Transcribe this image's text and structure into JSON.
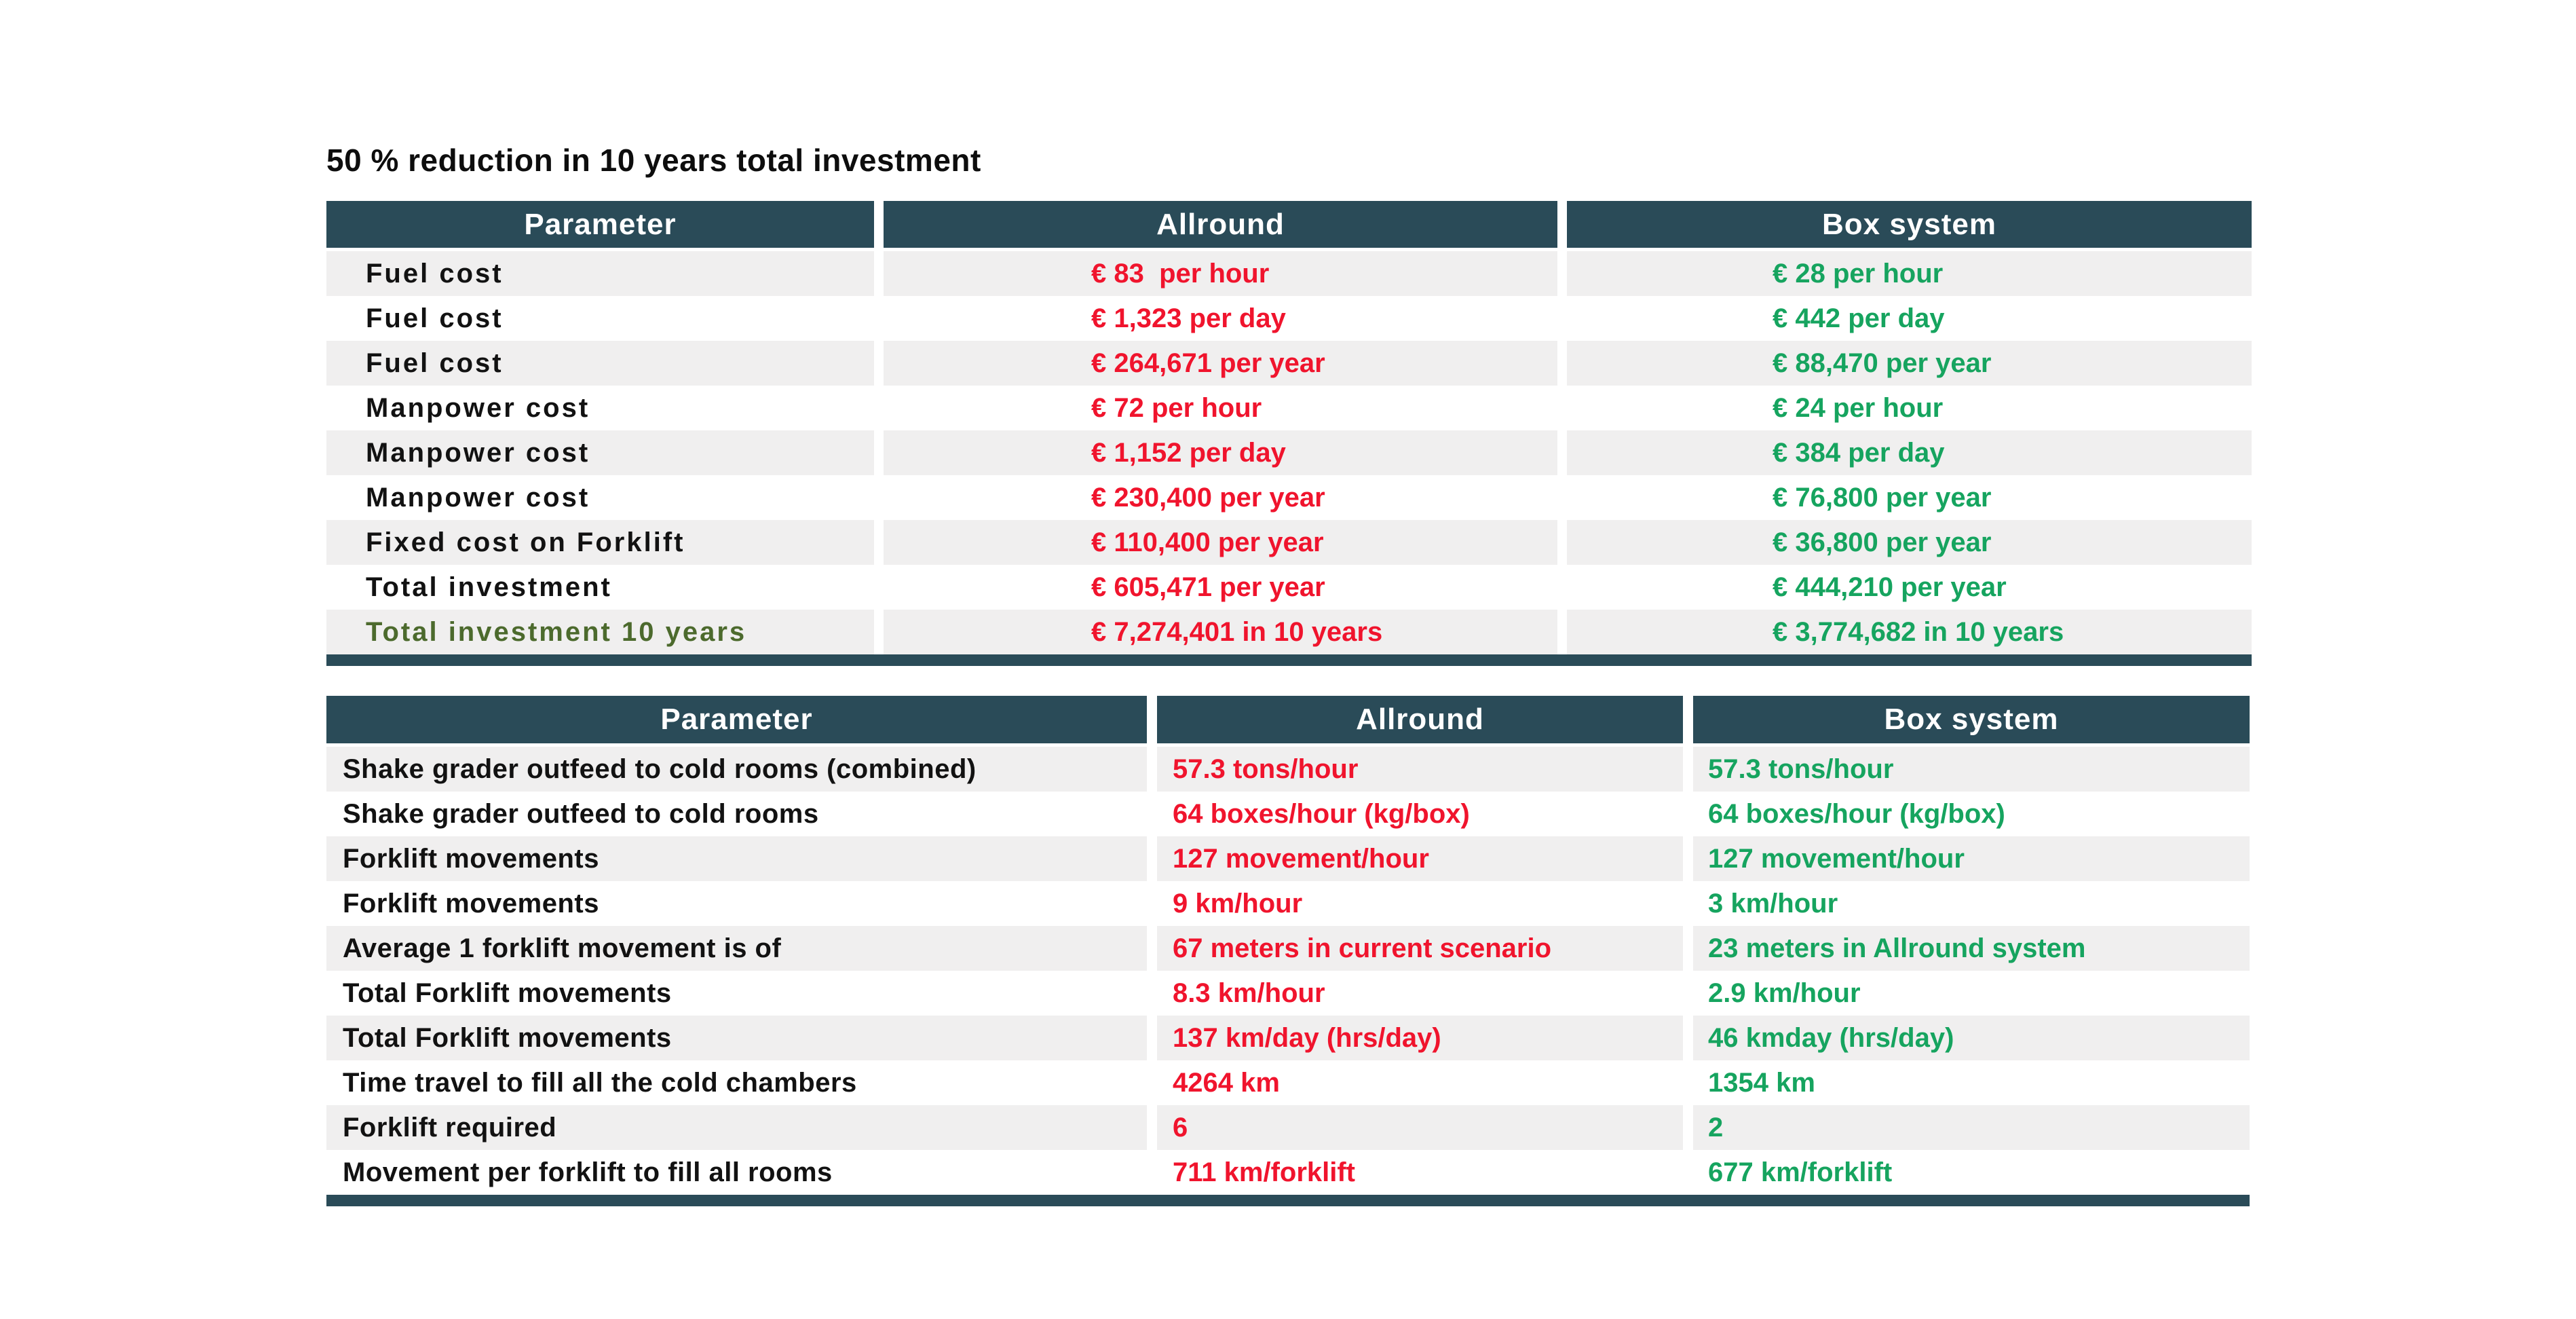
{
  "page": {
    "title": "50 % reduction in 10 years total investment"
  },
  "colors": {
    "header_bg": "#2a4b58",
    "header_text": "#ffffff",
    "row_alt_bg": "#f0efef",
    "row_bg": "#ffffff",
    "label_text": "#121212",
    "highlight_label_text": "#4c6a2d",
    "allround_text": "#f0142d",
    "box_text": "#16a45f",
    "bottom_border": "#2a4b58"
  },
  "chart_data": [
    {
      "type": "table",
      "name": "cost-comparison",
      "title": "50 % reduction in 10 years total investment",
      "columns": [
        "Parameter",
        "Allround",
        "Box system"
      ],
      "rows": [
        [
          "Fuel cost",
          "€ 83  per hour",
          "€ 28 per hour"
        ],
        [
          "Fuel cost",
          "€ 1,323 per day",
          "€ 442 per day"
        ],
        [
          "Fuel cost",
          "€ 264,671 per year",
          "€ 88,470 per year"
        ],
        [
          "Manpower cost",
          "€ 72 per hour",
          "€ 24 per hour"
        ],
        [
          "Manpower cost",
          "€ 1,152 per day",
          "€ 384 per day"
        ],
        [
          "Manpower cost",
          "€ 230,400 per year",
          "€ 76,800 per year"
        ],
        [
          "Fixed cost on Forklift",
          "€ 110,400 per year",
          "€ 36,800 per year"
        ],
        [
          "Total investment",
          "€ 605,471 per year",
          "€ 444,210 per year"
        ],
        [
          "Total investment 10 years",
          "€ 7,274,401 in 10 years",
          "€ 3,774,682 in 10 years"
        ]
      ],
      "highlight_row_indices": [
        8
      ],
      "value_colors": {
        "Allround": "#f0142d",
        "Box system": "#16a45f"
      }
    },
    {
      "type": "table",
      "name": "logistics-comparison",
      "title": "",
      "columns": [
        "Parameter",
        "Allround",
        "Box system"
      ],
      "rows": [
        [
          "Shake grader outfeed to cold rooms (combined)",
          "57.3 tons/hour",
          "57.3 tons/hour"
        ],
        [
          "Shake grader outfeed to cold rooms",
          "64 boxes/hour (kg/box)",
          "64 boxes/hour (kg/box)"
        ],
        [
          "Forklift movements",
          "127 movement/hour",
          "127 movement/hour"
        ],
        [
          "Forklift movements",
          "9 km/hour",
          "3 km/hour"
        ],
        [
          "Average 1 forklift movement is of",
          "67 meters in current scenario",
          "23 meters in Allround system"
        ],
        [
          "Total Forklift movements",
          "8.3 km/hour",
          "2.9 km/hour"
        ],
        [
          "Total Forklift movements",
          "137 km/day (hrs/day)",
          "46 kmday (hrs/day)"
        ],
        [
          "Time travel to fill all the cold chambers",
          "4264 km",
          "1354 km"
        ],
        [
          "Forklift required",
          "6",
          "2"
        ],
        [
          "Movement per forklift to fill all rooms",
          "711 km/forklift",
          "677 km/forklift"
        ]
      ],
      "highlight_row_indices": [],
      "value_colors": {
        "Allround": "#f0142d",
        "Box system": "#16a45f"
      }
    }
  ]
}
